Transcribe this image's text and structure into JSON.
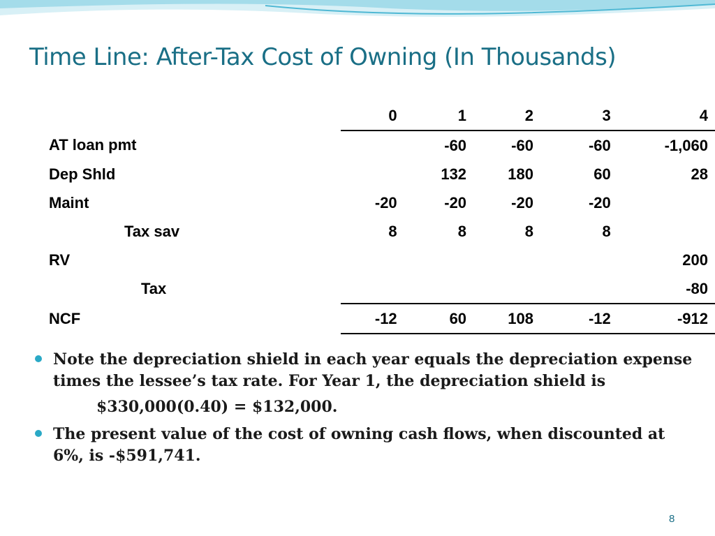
{
  "title": "Time Line:  After-Tax Cost of Owning (In Thousands)",
  "table": {
    "years": [
      "0",
      "1",
      "2",
      "3",
      "4"
    ],
    "rows": [
      {
        "label": "AT loan pmt",
        "values": [
          "",
          "-60",
          "-60",
          "-60",
          "-1,060"
        ]
      },
      {
        "label": "Dep Shld",
        "values": [
          "",
          "132",
          "180",
          "60",
          "28"
        ]
      },
      {
        "label": "Maint",
        "values": [
          "-20",
          "-20",
          "-20",
          "-20",
          ""
        ]
      },
      {
        "label": "Tax sav",
        "values": [
          "8",
          "8",
          "8",
          "8",
          ""
        ]
      },
      {
        "label": "RV",
        "values": [
          "",
          "",
          "",
          "",
          "200"
        ]
      },
      {
        "label": "Tax",
        "values": [
          "",
          "",
          "",
          "",
          "-80"
        ]
      },
      {
        "label": "NCF",
        "values": [
          "-12",
          "60",
          "108",
          "-12",
          "-912"
        ]
      }
    ]
  },
  "notes": {
    "bullet1": "Note the depreciation shield in each year equals the depreciation expense times the lessee’s tax rate.  For Year 1, the depreciation shield is",
    "formula": "$330,000(0.40) = $132,000.",
    "bullet2": "The present value of the cost of owning cash flows, when discounted at 6%, is  -$591,741."
  },
  "page_number": "8",
  "colors": {
    "title": "#1a6f86",
    "bullet": "#2aa9c6",
    "wave_light": "#d8f0f6",
    "wave_mid": "#8fd3e5"
  }
}
